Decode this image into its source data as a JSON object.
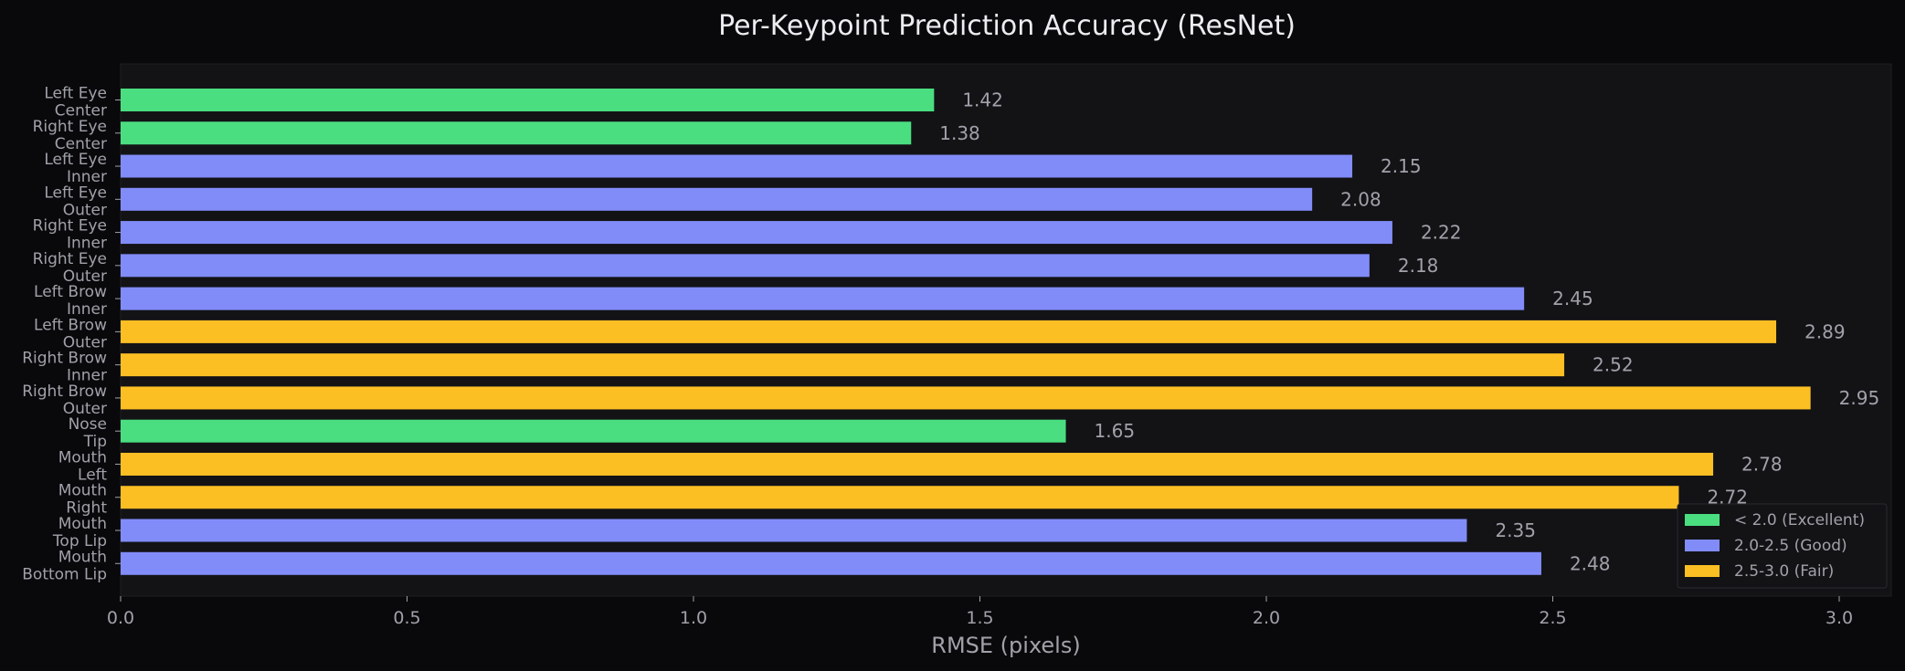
{
  "chart_data": {
    "type": "bar",
    "orientation": "horizontal",
    "title": "Per-Keypoint Prediction Accuracy (ResNet)",
    "xlabel": "RMSE (pixels)",
    "ylabel": "",
    "xlim": [
      0,
      3.1
    ],
    "xticks": [
      "0.0",
      "0.5",
      "1.0",
      "1.5",
      "2.0",
      "2.5",
      "3.0"
    ],
    "grid": false,
    "legend_position": "lower-right",
    "colors": {
      "background": "#09090b",
      "plot_area": "#131316",
      "excellent": "#4ade80",
      "good": "#818cf8",
      "fair": "#fbbf24"
    },
    "legend": [
      {
        "label": "< 2.0 (Excellent)",
        "color_key": "excellent"
      },
      {
        "label": "2.0-2.5 (Good)",
        "color_key": "good"
      },
      {
        "label": "2.5-3.0 (Fair)",
        "color_key": "fair"
      }
    ],
    "bars": [
      {
        "label": [
          "Left Eye",
          "Center"
        ],
        "value": 1.42,
        "value_label": "1.42",
        "color_key": "excellent"
      },
      {
        "label": [
          "Right Eye",
          "Center"
        ],
        "value": 1.38,
        "value_label": "1.38",
        "color_key": "excellent"
      },
      {
        "label": [
          "Left Eye",
          "Inner"
        ],
        "value": 2.15,
        "value_label": "2.15",
        "color_key": "good"
      },
      {
        "label": [
          "Left Eye",
          "Outer"
        ],
        "value": 2.08,
        "value_label": "2.08",
        "color_key": "good"
      },
      {
        "label": [
          "Right Eye",
          "Inner"
        ],
        "value": 2.22,
        "value_label": "2.22",
        "color_key": "good"
      },
      {
        "label": [
          "Right Eye",
          "Outer"
        ],
        "value": 2.18,
        "value_label": "2.18",
        "color_key": "good"
      },
      {
        "label": [
          "Left Brow",
          "Inner"
        ],
        "value": 2.45,
        "value_label": "2.45",
        "color_key": "good"
      },
      {
        "label": [
          "Left Brow",
          "Outer"
        ],
        "value": 2.89,
        "value_label": "2.89",
        "color_key": "fair"
      },
      {
        "label": [
          "Right Brow",
          "Inner"
        ],
        "value": 2.52,
        "value_label": "2.52",
        "color_key": "fair"
      },
      {
        "label": [
          "Right Brow",
          "Outer"
        ],
        "value": 2.95,
        "value_label": "2.95",
        "color_key": "fair"
      },
      {
        "label": [
          "Nose",
          "Tip"
        ],
        "value": 1.65,
        "value_label": "1.65",
        "color_key": "excellent"
      },
      {
        "label": [
          "Mouth",
          "Left"
        ],
        "value": 2.78,
        "value_label": "2.78",
        "color_key": "fair"
      },
      {
        "label": [
          "Mouth",
          "Right"
        ],
        "value": 2.72,
        "value_label": "2.72",
        "color_key": "fair"
      },
      {
        "label": [
          "Mouth",
          "Top Lip"
        ],
        "value": 2.35,
        "value_label": "2.35",
        "color_key": "good"
      },
      {
        "label": [
          "Mouth",
          "Bottom Lip"
        ],
        "value": 2.48,
        "value_label": "2.48",
        "color_key": "good"
      }
    ]
  }
}
